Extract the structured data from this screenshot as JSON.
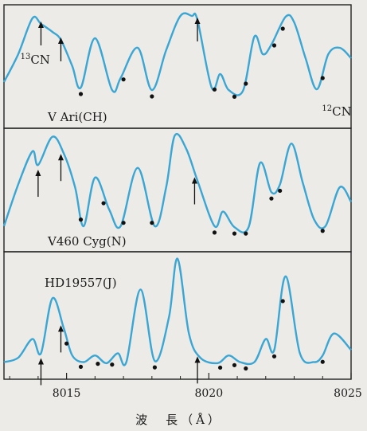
{
  "chart_data": {
    "type": "line",
    "xlabel": "波　長（Å）",
    "xlim": [
      8012.8,
      8025
    ],
    "x_ticks": [
      8015,
      8020,
      8025
    ],
    "colors": {
      "line": "#3aa6d4",
      "frame": "#222222",
      "marker": "#111111",
      "background": "#ecebe7"
    },
    "panels": [
      {
        "label": "V Ari(CH)",
        "annotations": [
          {
            "sup": "13",
            "text": "CN",
            "x": 8013.6
          },
          {
            "sup": "12",
            "text": "CN",
            "x": 8024.2
          }
        ],
        "series": [
          {
            "x": [
              8012.8,
              8013.3,
              8013.8,
              8014.1,
              8014.5,
              8014.8,
              8015.2,
              8015.5,
              8016.0,
              8016.6,
              8016.9,
              8017.5,
              8018.0,
              8018.5,
              8019.0,
              8019.4,
              8019.6,
              8020.1,
              8020.4,
              8020.7,
              8021.2,
              8021.6,
              8021.9,
              8022.2,
              8022.7,
              8023.0,
              8023.4,
              8023.8,
              8024.2,
              8024.6,
              8025.0
            ],
            "y": [
              0.15,
              0.5,
              0.95,
              0.88,
              0.78,
              0.68,
              0.35,
              0.08,
              0.7,
              0.05,
              0.2,
              0.58,
              0.05,
              0.55,
              0.98,
              0.98,
              0.93,
              0.08,
              0.25,
              0.05,
              0.04,
              0.72,
              0.5,
              0.62,
              0.97,
              0.9,
              0.45,
              0.06,
              0.5,
              0.58,
              0.45
            ]
          }
        ],
        "arrows": [
          8014.1,
          8014.8,
          8019.6
        ],
        "dots": [
          8015.5,
          8017.0,
          8018.0,
          8020.2,
          8020.9,
          8021.3,
          8022.3,
          8022.6,
          8024.0
        ]
      },
      {
        "label": "V460 Cyg(N)",
        "series": [
          {
            "x": [
              8012.8,
              8013.3,
              8013.8,
              8014.0,
              8014.5,
              8014.9,
              8015.3,
              8015.6,
              8016.0,
              8016.5,
              8016.9,
              8017.5,
              8018.1,
              8018.5,
              8018.8,
              8019.2,
              8019.6,
              8020.2,
              8020.5,
              8020.9,
              8021.4,
              8021.8,
              8022.2,
              8022.5,
              8022.9,
              8023.3,
              8023.7,
              8024.1,
              8024.6,
              8025.0
            ],
            "y": [
              0.05,
              0.48,
              0.82,
              0.68,
              0.97,
              0.8,
              0.45,
              0.05,
              0.55,
              0.22,
              0.05,
              0.65,
              0.05,
              0.45,
              0.98,
              0.85,
              0.52,
              0.05,
              0.2,
              0.04,
              0.04,
              0.7,
              0.4,
              0.48,
              0.9,
              0.5,
              0.12,
              0.05,
              0.45,
              0.3
            ]
          }
        ],
        "arrows": [
          8014.0,
          8014.8,
          8019.5
        ],
        "dots": [
          8015.5,
          8016.3,
          8017.0,
          8018.0,
          8020.2,
          8020.9,
          8021.3,
          8022.2,
          8022.5,
          8024.0
        ]
      },
      {
        "label": "HD19557(J)",
        "series": [
          {
            "x": [
              8012.8,
              8013.3,
              8013.8,
              8014.1,
              8014.5,
              8014.9,
              8015.2,
              8015.6,
              8016.0,
              8016.4,
              8016.8,
              8017.1,
              8017.6,
              8018.1,
              8018.6,
              8018.9,
              8019.3,
              8019.7,
              8020.3,
              8020.7,
              8021.1,
              8021.6,
              8022.0,
              8022.3,
              8022.7,
              8023.2,
              8023.7,
              8024.0,
              8024.4,
              8025.0
            ],
            "y": [
              0.04,
              0.08,
              0.25,
              0.12,
              0.62,
              0.35,
              0.1,
              0.04,
              0.1,
              0.03,
              0.12,
              0.04,
              0.7,
              0.05,
              0.45,
              0.98,
              0.3,
              0.08,
              0.03,
              0.1,
              0.04,
              0.04,
              0.25,
              0.15,
              0.82,
              0.12,
              0.04,
              0.1,
              0.3,
              0.15
            ]
          }
        ],
        "arrows": [
          8014.1,
          8014.8,
          8019.6
        ],
        "dots": [
          8015.0,
          8015.5,
          8016.1,
          8016.6,
          8018.1,
          8020.4,
          8020.9,
          8021.3,
          8022.3,
          8022.6,
          8024.0
        ]
      }
    ]
  }
}
